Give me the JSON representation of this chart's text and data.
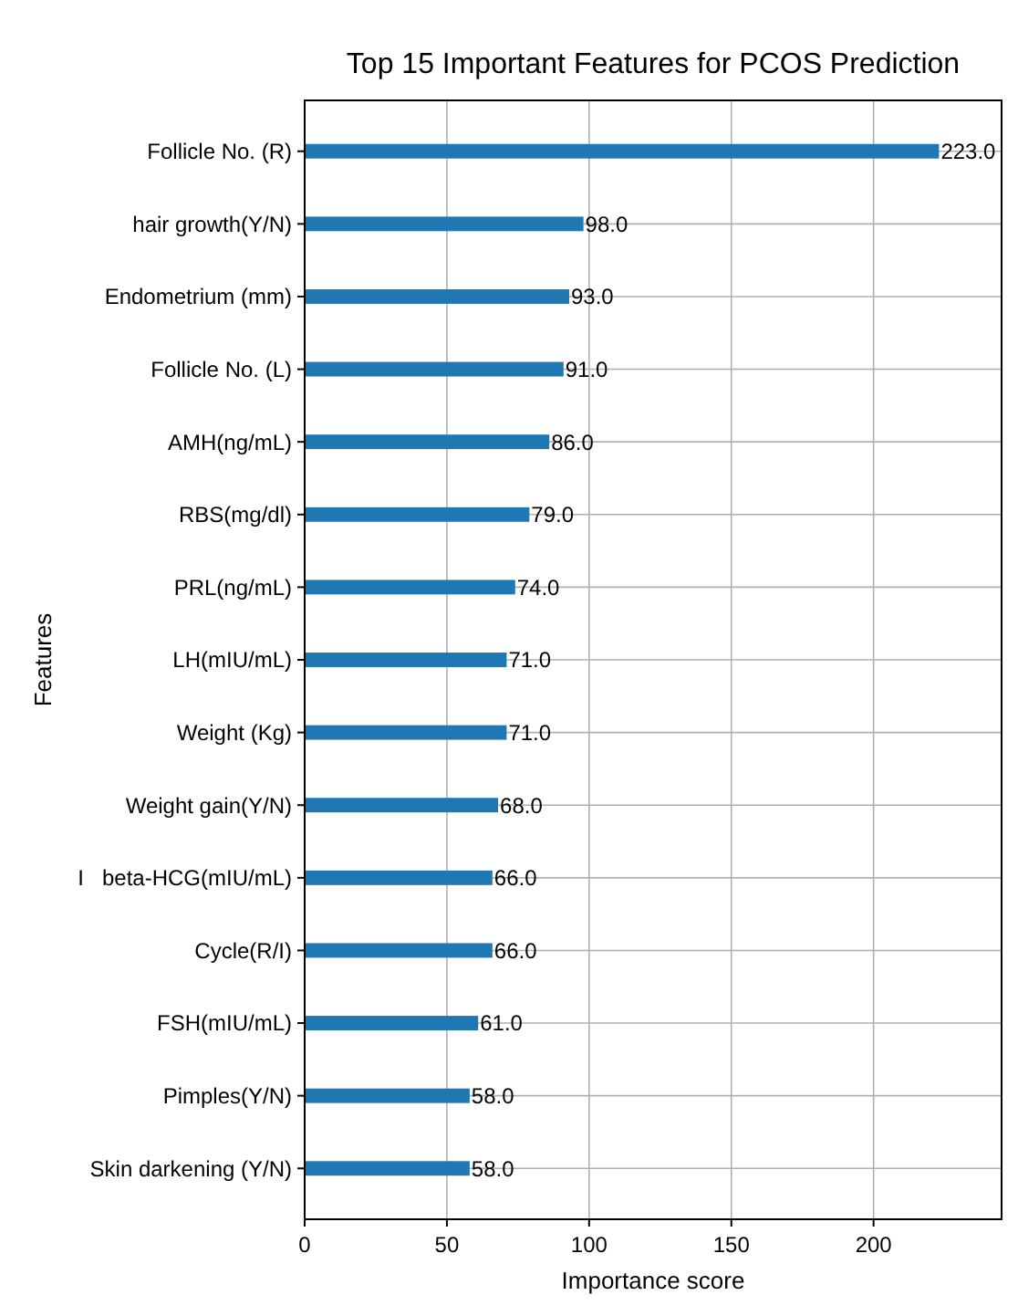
{
  "chart_data": {
    "type": "bar",
    "orientation": "horizontal",
    "title": "Top 15 Important Features for PCOS Prediction",
    "xlabel": "Importance score",
    "ylabel": "Features",
    "categories": [
      "Follicle No. (R)",
      "hair growth(Y/N)",
      "Endometrium (mm)",
      "Follicle No. (L)",
      "AMH(ng/mL)",
      "RBS(mg/dl)",
      "PRL(ng/mL)",
      "LH(mIU/mL)",
      "Weight (Kg)",
      "Weight gain(Y/N)",
      "I   beta-HCG(mIU/mL)",
      "Cycle(R/I)",
      "FSH(mIU/mL)",
      "Pimples(Y/N)",
      "Skin darkening (Y/N)"
    ],
    "values": [
      223,
      98,
      93,
      91,
      86,
      79,
      74,
      71,
      71,
      68,
      66,
      66,
      61,
      58,
      58
    ],
    "value_labels": [
      "223.0",
      "98.0",
      "93.0",
      "91.0",
      "86.0",
      "79.0",
      "74.0",
      "71.0",
      "71.0",
      "68.0",
      "66.0",
      "66.0",
      "61.0",
      "58.0",
      "58.0"
    ],
    "color": "#1f77b4",
    "xlim": [
      0,
      245
    ],
    "xticks": [
      0,
      50,
      100,
      150,
      200
    ],
    "grid": true
  }
}
